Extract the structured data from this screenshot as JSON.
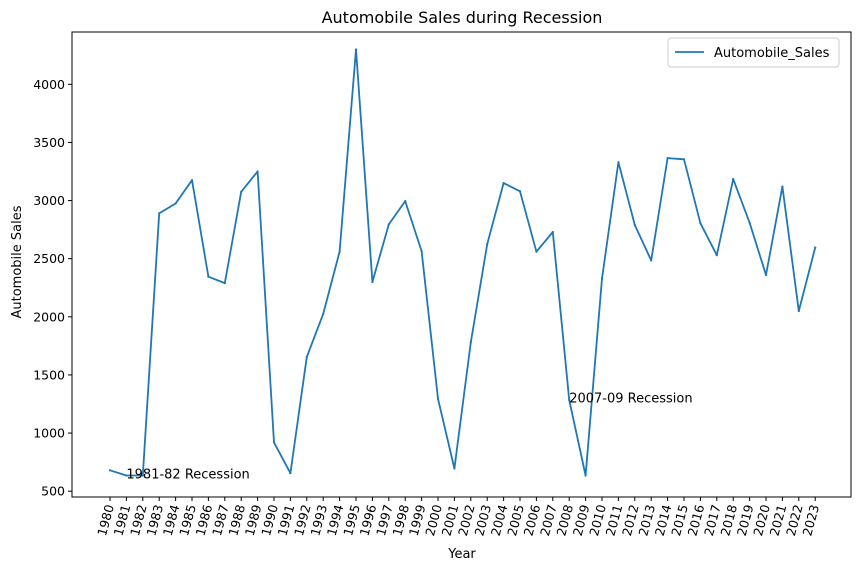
{
  "chart_data": {
    "type": "line",
    "title": "Automobile Sales during Recession",
    "xlabel": "Year",
    "ylabel": "Automobile Sales",
    "categories": [
      "1980",
      "1981",
      "1982",
      "1983",
      "1984",
      "1985",
      "1986",
      "1987",
      "1988",
      "1989",
      "1990",
      "1991",
      "1992",
      "1993",
      "1994",
      "1995",
      "1996",
      "1997",
      "1998",
      "1999",
      "2000",
      "2001",
      "2002",
      "2003",
      "2004",
      "2005",
      "2006",
      "2007",
      "2008",
      "2009",
      "2010",
      "2011",
      "2012",
      "2013",
      "2014",
      "2015",
      "2016",
      "2017",
      "2018",
      "2019",
      "2020",
      "2021",
      "2022",
      "2023"
    ],
    "series": [
      {
        "name": "Automobile_Sales",
        "color": "#1f77b4",
        "values": [
          680,
          635,
          635,
          2890,
          2975,
          3175,
          2345,
          2290,
          3075,
          3250,
          920,
          655,
          1655,
          2025,
          2560,
          4300,
          2300,
          2795,
          2995,
          2565,
          1295,
          695,
          1780,
          2625,
          3150,
          3080,
          2560,
          2730,
          1285,
          635,
          2330,
          3330,
          2790,
          2485,
          3365,
          3355,
          2805,
          2530,
          3185,
          2810,
          2360,
          3120,
          2050,
          2595
        ]
      }
    ],
    "ylim": [
      450,
      4450
    ],
    "yticks": [
      500,
      1000,
      1500,
      2000,
      2500,
      3000,
      3500,
      4000
    ],
    "legend_position": "top-right",
    "annotations": [
      {
        "text": "1981-82 Recession",
        "x": "1981",
        "y": 650
      },
      {
        "text": "2007-09 Recession",
        "x": "2008",
        "y": 1300
      }
    ],
    "grid": false
  }
}
